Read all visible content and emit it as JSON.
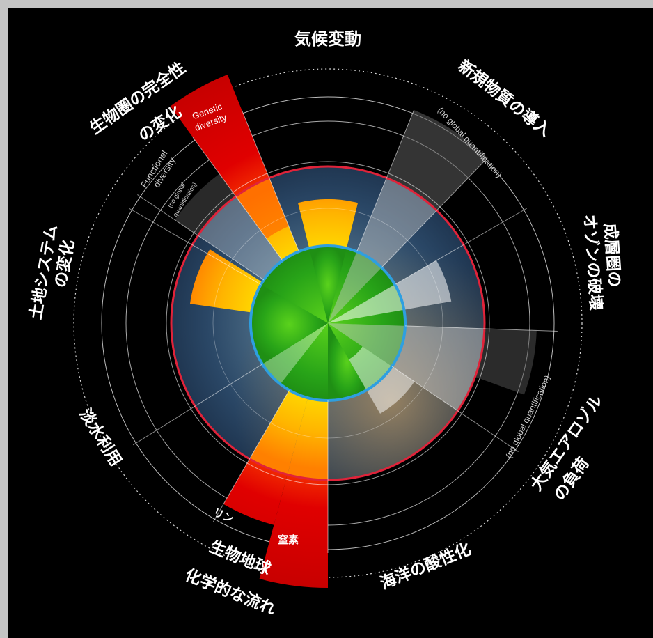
{
  "diagram": {
    "segments": {
      "climate": "気候変動",
      "novel_entities": "新規物質の導入",
      "ozone": [
        "成層圏の",
        "オゾンの破壊"
      ],
      "aerosols": [
        "大気エアロゾル",
        "の負荷"
      ],
      "ocean": "海洋の酸性化",
      "biogeochemical": [
        "生物地球",
        "化学的な流れ"
      ],
      "freshwater": "淡水利用",
      "land": [
        "土地システム",
        "の変化"
      ],
      "biosphere": [
        "生物圏の完全性",
        "の変化"
      ]
    },
    "sub_labels": {
      "genetic": [
        "Genetic",
        "diversity"
      ],
      "functional": [
        "Functional",
        "diversity"
      ],
      "functional_note": [
        "(no global",
        "quantification)"
      ],
      "novel_note": "(no global quantification)",
      "aerosol_note": "(no global quantification)",
      "phosphorus": "リン",
      "nitrogen": "窒素"
    },
    "colors": {
      "safe": "#2aa81a",
      "increasing_risk": "#ffc000",
      "high_risk": "#e00000",
      "boundary_ring": "#2e9fe0",
      "outer_ring": "#e0233a",
      "no_quantification": "#8c8c8c"
    }
  }
}
